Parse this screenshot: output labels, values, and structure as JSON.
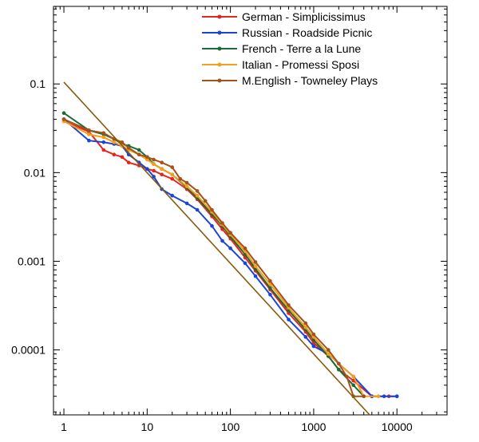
{
  "chart_data": {
    "type": "line",
    "title": "",
    "xlabel": "",
    "ylabel": "",
    "x_scale": "log",
    "y_scale": "log",
    "xlim": [
      0.75,
      40000
    ],
    "ylim": [
      1.85e-05,
      0.75
    ],
    "x_ticks": [
      {
        "value": 1,
        "label": "1"
      },
      {
        "value": 10,
        "label": "10"
      },
      {
        "value": 100,
        "label": "100"
      },
      {
        "value": 1000,
        "label": "1000"
      },
      {
        "value": 10000,
        "label": "10000"
      }
    ],
    "y_ticks": [
      {
        "value": 0.1,
        "label": "0.1"
      },
      {
        "value": 0.01,
        "label": "0.01"
      },
      {
        "value": 0.001,
        "label": "0.001"
      },
      {
        "value": 0.0001,
        "label": "0.0001"
      }
    ],
    "grid": false,
    "legend_position": "top-right",
    "series": [
      {
        "name": "German - Simplicissimus",
        "color": "#e8251c",
        "points": [
          [
            1,
            0.038
          ],
          [
            2,
            0.029
          ],
          [
            3,
            0.018
          ],
          [
            4,
            0.016
          ],
          [
            5,
            0.015
          ],
          [
            6,
            0.013
          ],
          [
            8,
            0.012
          ],
          [
            10,
            0.011
          ],
          [
            12,
            0.0105
          ],
          [
            15,
            0.0095
          ],
          [
            20,
            0.0085
          ],
          [
            30,
            0.0065
          ],
          [
            40,
            0.005
          ],
          [
            60,
            0.0032
          ],
          [
            80,
            0.0023
          ],
          [
            100,
            0.0018
          ],
          [
            150,
            0.0011
          ],
          [
            200,
            0.00078
          ],
          [
            300,
            0.00048
          ],
          [
            500,
            0.00026
          ],
          [
            800,
            0.00016
          ],
          [
            1000,
            0.00012
          ],
          [
            1500,
            8.5e-05
          ],
          [
            2000,
            6e-05
          ],
          [
            3000,
            4.5e-05
          ],
          [
            5000,
            3e-05
          ],
          [
            8000,
            3e-05
          ],
          [
            10000,
            3e-05
          ]
        ]
      },
      {
        "name": "Russian - Roadside Picnic",
        "color": "#1a44d8",
        "points": [
          [
            1,
            0.04
          ],
          [
            2,
            0.023
          ],
          [
            3,
            0.022
          ],
          [
            4,
            0.021
          ],
          [
            5,
            0.02
          ],
          [
            6,
            0.016
          ],
          [
            8,
            0.013
          ],
          [
            10,
            0.011
          ],
          [
            12,
            0.009
          ],
          [
            15,
            0.0065
          ],
          [
            20,
            0.0055
          ],
          [
            30,
            0.0045
          ],
          [
            40,
            0.0038
          ],
          [
            60,
            0.0025
          ],
          [
            80,
            0.0017
          ],
          [
            100,
            0.0014
          ],
          [
            150,
            0.00095
          ],
          [
            200,
            0.00068
          ],
          [
            300,
            0.00042
          ],
          [
            500,
            0.00022
          ],
          [
            800,
            0.00014
          ],
          [
            1000,
            0.00011
          ],
          [
            1500,
            9e-05
          ],
          [
            2000,
            7e-05
          ],
          [
            3000,
            5e-05
          ],
          [
            5000,
            3e-05
          ],
          [
            7000,
            3e-05
          ],
          [
            10000,
            3e-05
          ]
        ]
      },
      {
        "name": "French - Terre a la Lune",
        "color": "#1b6b38",
        "points": [
          [
            1,
            0.047
          ],
          [
            2,
            0.03
          ],
          [
            3,
            0.027
          ],
          [
            4,
            0.024
          ],
          [
            5,
            0.021
          ],
          [
            6,
            0.02
          ],
          [
            8,
            0.018
          ],
          [
            10,
            0.015
          ],
          [
            12,
            0.0125
          ],
          [
            15,
            0.011
          ],
          [
            20,
            0.0095
          ],
          [
            30,
            0.0068
          ],
          [
            40,
            0.0052
          ],
          [
            60,
            0.0034
          ],
          [
            80,
            0.0025
          ],
          [
            100,
            0.0019
          ],
          [
            150,
            0.0012
          ],
          [
            200,
            0.00082
          ],
          [
            300,
            0.0005
          ],
          [
            500,
            0.00028
          ],
          [
            800,
            0.00017
          ],
          [
            1000,
            0.00013
          ],
          [
            1500,
            8.5e-05
          ],
          [
            2000,
            6e-05
          ],
          [
            3000,
            4e-05
          ],
          [
            4000,
            3e-05
          ]
        ]
      },
      {
        "name": "Italian - Promessi Sposi",
        "color": "#f59e1b",
        "points": [
          [
            1,
            0.038
          ],
          [
            2,
            0.027
          ],
          [
            3,
            0.025
          ],
          [
            4,
            0.022
          ],
          [
            5,
            0.02
          ],
          [
            6,
            0.018
          ],
          [
            8,
            0.016
          ],
          [
            10,
            0.014
          ],
          [
            12,
            0.0125
          ],
          [
            15,
            0.011
          ],
          [
            20,
            0.0095
          ],
          [
            30,
            0.007
          ],
          [
            40,
            0.0055
          ],
          [
            60,
            0.0036
          ],
          [
            80,
            0.0026
          ],
          [
            100,
            0.002
          ],
          [
            150,
            0.0013
          ],
          [
            200,
            0.00088
          ],
          [
            300,
            0.00055
          ],
          [
            500,
            0.0003
          ],
          [
            800,
            0.00018
          ],
          [
            1000,
            0.00014
          ],
          [
            1500,
            9e-05
          ],
          [
            2000,
            7e-05
          ],
          [
            3000,
            5e-05
          ],
          [
            4000,
            3e-05
          ],
          [
            6000,
            3e-05
          ]
        ]
      },
      {
        "name": "M.English - Towneley Plays",
        "color": "#a2521a",
        "points": [
          [
            1,
            0.04
          ],
          [
            2,
            0.03
          ],
          [
            3,
            0.028
          ],
          [
            4,
            0.024
          ],
          [
            5,
            0.022
          ],
          [
            6,
            0.019
          ],
          [
            8,
            0.016
          ],
          [
            10,
            0.015
          ],
          [
            12,
            0.014
          ],
          [
            15,
            0.013
          ],
          [
            20,
            0.0115
          ],
          [
            25,
            0.0085
          ],
          [
            30,
            0.0077
          ],
          [
            40,
            0.0062
          ],
          [
            50,
            0.0048
          ],
          [
            60,
            0.0038
          ],
          [
            80,
            0.0027
          ],
          [
            100,
            0.0021
          ],
          [
            150,
            0.0014
          ],
          [
            200,
            0.00098
          ],
          [
            300,
            0.0006
          ],
          [
            500,
            0.00032
          ],
          [
            800,
            0.0002
          ],
          [
            1000,
            0.00015
          ],
          [
            1500,
            0.0001
          ],
          [
            2000,
            7e-05
          ],
          [
            2500,
            5e-05
          ],
          [
            3000,
            3e-05
          ],
          [
            4000,
            3e-05
          ]
        ]
      },
      {
        "name": "",
        "color": "#8a5a0c",
        "points": [
          [
            1,
            0.105
          ],
          [
            4700,
            1.85e-05
          ]
        ]
      }
    ]
  }
}
